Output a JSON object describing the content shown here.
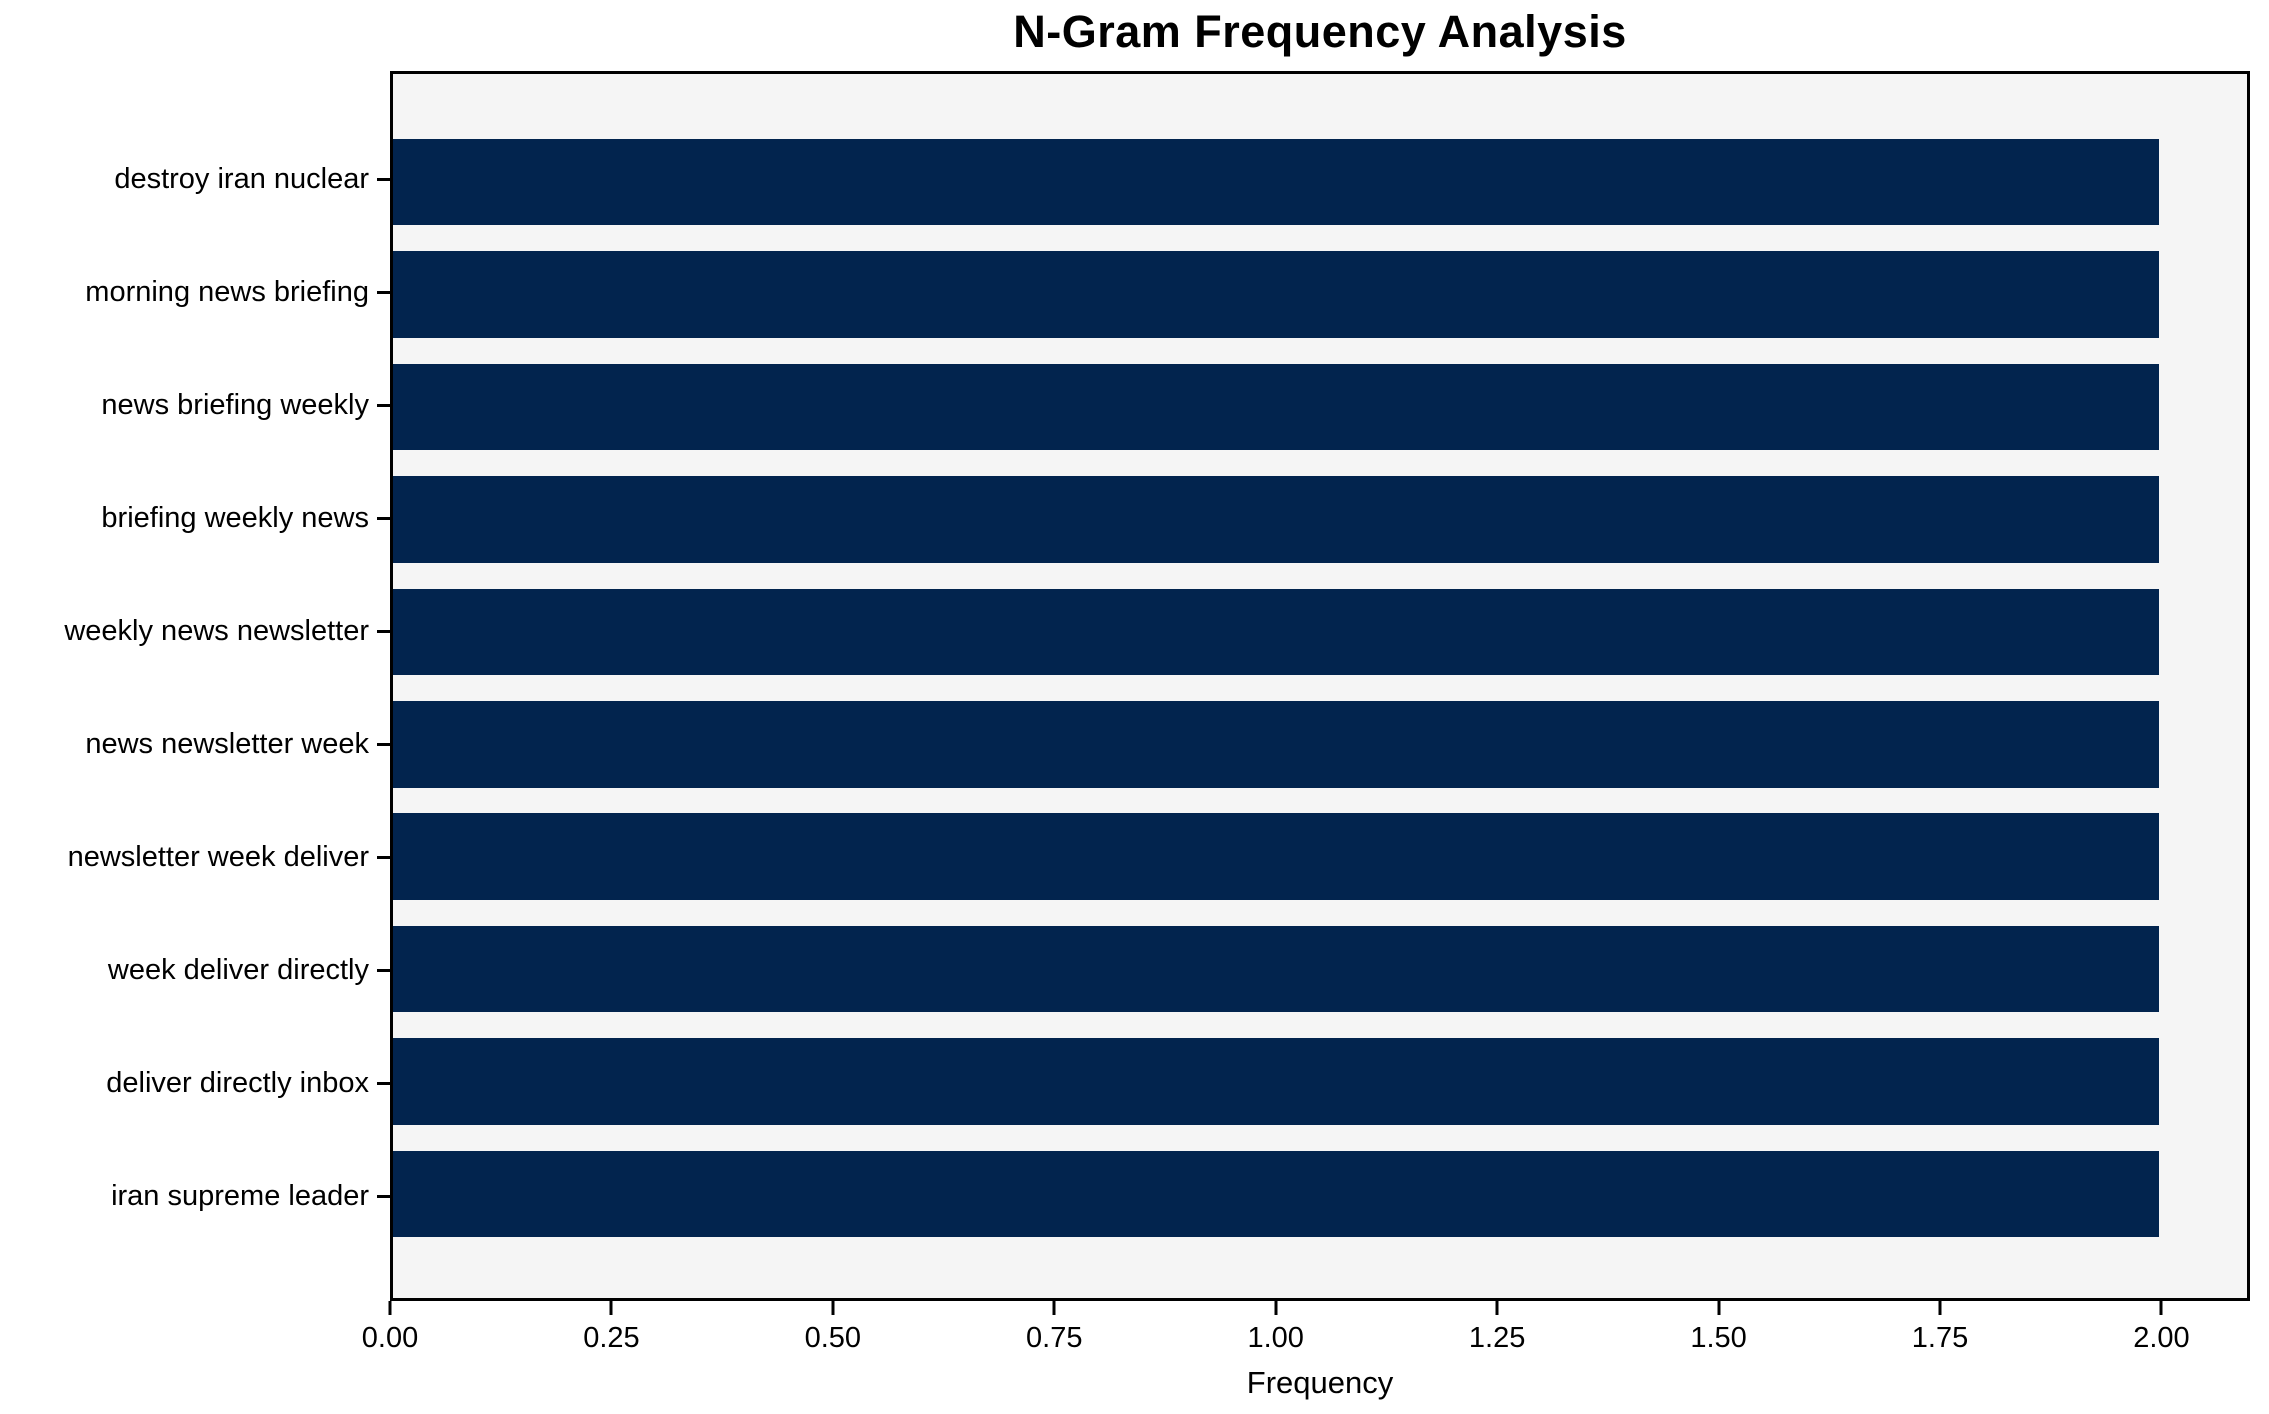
{
  "chart_data": {
    "type": "bar",
    "orientation": "horizontal",
    "title": "N-Gram Frequency Analysis",
    "xlabel": "Frequency",
    "ylabel": "",
    "categories": [
      "destroy iran nuclear",
      "morning news briefing",
      "news briefing weekly",
      "briefing weekly news",
      "weekly news newsletter",
      "news newsletter week",
      "newsletter week deliver",
      "week deliver directly",
      "deliver directly inbox",
      "iran supreme leader"
    ],
    "values": [
      2,
      2,
      2,
      2,
      2,
      2,
      2,
      2,
      2,
      2
    ],
    "x_tick_values": [
      0.0,
      0.25,
      0.5,
      0.75,
      1.0,
      1.25,
      1.5,
      1.75,
      2.0
    ],
    "x_tick_labels": [
      "0.00",
      "0.25",
      "0.50",
      "0.75",
      "1.00",
      "1.25",
      "1.50",
      "1.75",
      "2.00"
    ],
    "xlim": [
      0,
      2.1
    ],
    "grid": false,
    "legend": null,
    "colors": {
      "bar": "#02244e",
      "plot_background": "#f5f5f5",
      "figure_background": "#ffffff",
      "spine": "#000000",
      "text": "#000000"
    }
  }
}
